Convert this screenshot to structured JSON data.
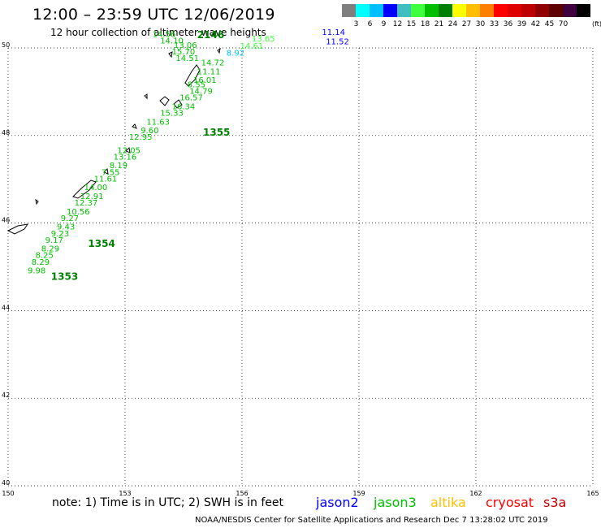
{
  "header": {
    "title": "12:00 – 23:59 UTC 12/06/2019",
    "subtitle": "12 hour collection of altimeter wave heights"
  },
  "colorbar": {
    "colors": [
      "#7f7f7f",
      "#00ffff",
      "#00bfff",
      "#0000ff",
      "#3fbfbf",
      "#3fff3f",
      "#00bf00",
      "#007f00",
      "#ffff00",
      "#ffbf00",
      "#ff7f00",
      "#ff0000",
      "#df0000",
      "#bf0000",
      "#8f0000",
      "#5f0000",
      "#3f003f",
      "#000000"
    ],
    "labels": [
      "3",
      "6",
      "9",
      "12",
      "15",
      "18",
      "21",
      "24",
      "27",
      "30",
      "33",
      "36",
      "39",
      "42",
      "45",
      "70"
    ],
    "unit": "(ft)"
  },
  "map": {
    "x_range": [
      150,
      165
    ],
    "y_range": [
      40,
      50
    ],
    "x_ticks": [
      "150",
      "153",
      "156",
      "159",
      "162",
      "165"
    ],
    "y_ticks": [
      "40",
      "42",
      "44",
      "46",
      "48",
      "50"
    ]
  },
  "tracks": [
    {
      "satellite": "jason3",
      "color": "#00bf00",
      "points": [
        [
          "9.98",
          150.5,
          44.85
        ],
        [
          "8.29",
          150.6,
          45.05
        ],
        [
          "8.25",
          150.7,
          45.2
        ],
        [
          "8.29",
          150.85,
          45.35
        ],
        [
          "9.17",
          150.95,
          45.55
        ],
        [
          "9.23",
          151.1,
          45.7
        ],
        [
          "9.43",
          151.25,
          45.85
        ],
        [
          "9.27",
          151.35,
          46.05
        ],
        [
          "10.56",
          151.5,
          46.2
        ],
        [
          "12.37",
          151.7,
          46.4
        ],
        [
          "12.91",
          151.85,
          46.55
        ],
        [
          "14.00",
          151.95,
          46.75
        ],
        [
          "11.61",
          152.2,
          46.95
        ],
        [
          "7.55",
          152.4,
          47.1
        ],
        [
          "8.19",
          152.6,
          47.25
        ],
        [
          "13.16",
          152.7,
          47.45
        ],
        [
          "12.05",
          152.8,
          47.6
        ],
        [
          "12.95",
          153.1,
          47.9
        ],
        [
          "9.60",
          153.4,
          48.05
        ],
        [
          "11.63",
          153.55,
          48.25
        ],
        [
          "15.33",
          153.9,
          48.45
        ],
        [
          "16.34",
          154.2,
          48.6
        ],
        [
          "16.57",
          154.4,
          48.8
        ],
        [
          "14.79",
          154.65,
          48.95
        ],
        [
          "8.55",
          154.6,
          49.1
        ],
        [
          "16.01",
          154.75,
          49.2
        ],
        [
          "11.11",
          154.85,
          49.4
        ],
        [
          "14.72",
          154.95,
          49.6
        ],
        [
          "14.51",
          154.3,
          49.7
        ],
        [
          "15.70",
          154.2,
          49.85
        ],
        [
          "13.06",
          154.25,
          50.0
        ],
        [
          "14.10",
          153.9,
          50.1
        ],
        [
          "14.56",
          153.7,
          50.25
        ],
        [
          "1355",
          155.0,
          48.0,
          "id"
        ],
        [
          "1354",
          152.05,
          45.45,
          "id"
        ],
        [
          "1353",
          151.1,
          44.7,
          "id"
        ],
        [
          "2146",
          154.85,
          50.22,
          "id"
        ]
      ]
    }
  ],
  "track_labels": [
    {
      "text": "13.65",
      "x": 156.25,
      "y": 50.15,
      "color": "#3fff3f"
    },
    {
      "text": "14.61",
      "x": 155.95,
      "y": 49.98,
      "color": "#3fff3f"
    },
    {
      "text": "8.92",
      "x": 155.6,
      "y": 49.82,
      "color": "#00bfff"
    },
    {
      "text": "11.14",
      "x": 158.05,
      "y": 50.3,
      "color": "#0000ff"
    },
    {
      "text": "11.52",
      "x": 158.15,
      "y": 50.08,
      "color": "#0000ff"
    }
  ],
  "legend": {
    "note": "note: 1) Time is in UTC; 2) SWH is in feet",
    "items": [
      {
        "name": "jason2",
        "color": "#0000ff"
      },
      {
        "name": "jason3",
        "color": "#00bf00"
      },
      {
        "name": "altika",
        "color": "#ffbf00"
      },
      {
        "name": "cryosat",
        "color": "#ff0000"
      },
      {
        "name": "s3a",
        "color": "#bf0000"
      }
    ]
  },
  "footer": "NOAA/NESDIS Center for Satellite Applications and Research    Dec  7 13:28:02 UTC 2019"
}
